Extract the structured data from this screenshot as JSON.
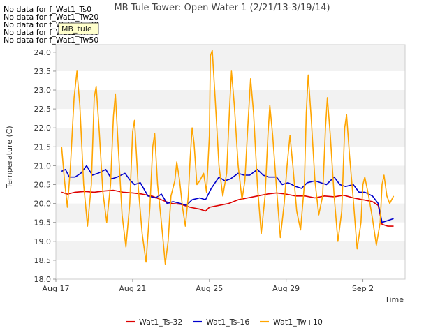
{
  "no_data_messages": [
    "No data for f_Wat1_Ts0",
    "No data for f_Wat1_Tw20",
    "No data for f_Wat1_Tw30",
    "No data for f_Wat1_Tw40",
    "No data for f_Wat1_Tw50"
  ],
  "chart_data": {
    "type": "line",
    "title": "MB Tule Tower: Open Water 1 (2/21/13-3/19/14)",
    "xlabel": "Time",
    "ylabel": "Temperature (C)",
    "ylim": [
      18.0,
      24.2
    ],
    "xlim_days": [
      17,
      35.2
    ],
    "x_tick_labels": [
      "Aug 17",
      "Aug 21",
      "Aug 25",
      "Aug 29",
      "Sep 2"
    ],
    "x_tick_days": [
      17,
      21,
      25,
      29,
      33
    ],
    "y_ticks": [
      18.0,
      18.5,
      19.0,
      19.5,
      20.0,
      20.5,
      21.0,
      21.5,
      22.0,
      22.5,
      23.0,
      23.5,
      24.0
    ],
    "grid": "alternating horizontal bands",
    "legend_position": "bottom",
    "badge": "MB_tule",
    "series": [
      {
        "name": "Wat1_Ts-32",
        "color": "#dd0000",
        "points": [
          [
            17.3,
            20.3
          ],
          [
            17.6,
            20.25
          ],
          [
            18.0,
            20.3
          ],
          [
            18.5,
            20.32
          ],
          [
            19.0,
            20.3
          ],
          [
            19.5,
            20.33
          ],
          [
            20.0,
            20.35
          ],
          [
            20.5,
            20.3
          ],
          [
            21.0,
            20.28
          ],
          [
            21.5,
            20.25
          ],
          [
            22.0,
            20.2
          ],
          [
            22.5,
            20.1
          ],
          [
            23.0,
            20.0
          ],
          [
            23.5,
            19.98
          ],
          [
            24.0,
            19.9
          ],
          [
            24.5,
            19.85
          ],
          [
            24.8,
            19.8
          ],
          [
            25.0,
            19.9
          ],
          [
            25.5,
            19.95
          ],
          [
            26.0,
            20.0
          ],
          [
            26.5,
            20.1
          ],
          [
            27.0,
            20.15
          ],
          [
            27.5,
            20.2
          ],
          [
            28.0,
            20.25
          ],
          [
            28.5,
            20.28
          ],
          [
            29.0,
            20.25
          ],
          [
            29.5,
            20.2
          ],
          [
            30.0,
            20.2
          ],
          [
            30.5,
            20.15
          ],
          [
            31.0,
            20.2
          ],
          [
            31.5,
            20.18
          ],
          [
            32.0,
            20.22
          ],
          [
            32.5,
            20.15
          ],
          [
            33.0,
            20.1
          ],
          [
            33.5,
            20.05
          ],
          [
            33.8,
            19.95
          ],
          [
            34.0,
            19.45
          ],
          [
            34.3,
            19.4
          ],
          [
            34.6,
            19.4
          ]
        ]
      },
      {
        "name": "Wat1_Ts-16",
        "color": "#0000cc",
        "points": [
          [
            17.3,
            20.85
          ],
          [
            17.5,
            20.9
          ],
          [
            17.7,
            20.7
          ],
          [
            18.0,
            20.7
          ],
          [
            18.3,
            20.8
          ],
          [
            18.6,
            21.0
          ],
          [
            18.9,
            20.75
          ],
          [
            19.2,
            20.8
          ],
          [
            19.6,
            20.9
          ],
          [
            19.9,
            20.65
          ],
          [
            20.2,
            20.7
          ],
          [
            20.6,
            20.8
          ],
          [
            20.9,
            20.6
          ],
          [
            21.1,
            20.5
          ],
          [
            21.4,
            20.55
          ],
          [
            21.8,
            20.2
          ],
          [
            22.2,
            20.15
          ],
          [
            22.5,
            20.25
          ],
          [
            22.8,
            20.0
          ],
          [
            23.1,
            20.05
          ],
          [
            23.5,
            20.0
          ],
          [
            23.8,
            19.95
          ],
          [
            24.1,
            20.1
          ],
          [
            24.5,
            20.15
          ],
          [
            24.8,
            20.1
          ],
          [
            25.1,
            20.4
          ],
          [
            25.5,
            20.7
          ],
          [
            25.8,
            20.6
          ],
          [
            26.1,
            20.65
          ],
          [
            26.5,
            20.8
          ],
          [
            26.8,
            20.75
          ],
          [
            27.1,
            20.75
          ],
          [
            27.5,
            20.9
          ],
          [
            27.8,
            20.75
          ],
          [
            28.1,
            20.7
          ],
          [
            28.5,
            20.7
          ],
          [
            28.8,
            20.5
          ],
          [
            29.1,
            20.55
          ],
          [
            29.5,
            20.45
          ],
          [
            29.8,
            20.4
          ],
          [
            30.1,
            20.55
          ],
          [
            30.5,
            20.6
          ],
          [
            30.8,
            20.55
          ],
          [
            31.1,
            20.5
          ],
          [
            31.5,
            20.7
          ],
          [
            31.8,
            20.5
          ],
          [
            32.1,
            20.45
          ],
          [
            32.5,
            20.5
          ],
          [
            32.8,
            20.3
          ],
          [
            33.1,
            20.3
          ],
          [
            33.5,
            20.2
          ],
          [
            33.8,
            20.0
          ],
          [
            34.0,
            19.5
          ],
          [
            34.3,
            19.55
          ],
          [
            34.6,
            19.6
          ]
        ]
      },
      {
        "name": "Wat1_Tw+10",
        "color": "#ffa500",
        "points": [
          [
            17.3,
            21.5
          ],
          [
            17.45,
            20.6
          ],
          [
            17.6,
            19.9
          ],
          [
            17.75,
            20.9
          ],
          [
            17.95,
            22.8
          ],
          [
            18.1,
            23.5
          ],
          [
            18.25,
            22.6
          ],
          [
            18.45,
            20.5
          ],
          [
            18.65,
            19.4
          ],
          [
            18.85,
            20.5
          ],
          [
            19.0,
            22.8
          ],
          [
            19.1,
            23.1
          ],
          [
            19.25,
            22.0
          ],
          [
            19.45,
            20.3
          ],
          [
            19.65,
            19.5
          ],
          [
            19.85,
            20.5
          ],
          [
            20.0,
            22.3
          ],
          [
            20.1,
            22.9
          ],
          [
            20.25,
            21.5
          ],
          [
            20.45,
            19.7
          ],
          [
            20.65,
            18.85
          ],
          [
            20.85,
            20.0
          ],
          [
            21.0,
            21.9
          ],
          [
            21.1,
            22.2
          ],
          [
            21.3,
            20.4
          ],
          [
            21.5,
            19.2
          ],
          [
            21.7,
            18.45
          ],
          [
            21.9,
            19.9
          ],
          [
            22.05,
            21.5
          ],
          [
            22.15,
            21.85
          ],
          [
            22.3,
            20.5
          ],
          [
            22.5,
            19.5
          ],
          [
            22.7,
            18.4
          ],
          [
            22.85,
            19.0
          ],
          [
            23.0,
            20.2
          ],
          [
            23.2,
            20.6
          ],
          [
            23.3,
            21.1
          ],
          [
            23.45,
            20.6
          ],
          [
            23.6,
            19.9
          ],
          [
            23.75,
            19.4
          ],
          [
            23.9,
            20.2
          ],
          [
            24.0,
            21.2
          ],
          [
            24.1,
            22.0
          ],
          [
            24.2,
            21.6
          ],
          [
            24.35,
            20.5
          ],
          [
            24.5,
            20.6
          ],
          [
            24.7,
            20.8
          ],
          [
            24.85,
            20.3
          ],
          [
            25.0,
            21.8
          ],
          [
            25.05,
            23.9
          ],
          [
            25.15,
            24.05
          ],
          [
            25.3,
            22.8
          ],
          [
            25.5,
            21.0
          ],
          [
            25.7,
            20.2
          ],
          [
            25.9,
            20.8
          ],
          [
            26.05,
            22.5
          ],
          [
            26.15,
            23.5
          ],
          [
            26.3,
            22.6
          ],
          [
            26.5,
            21.0
          ],
          [
            26.7,
            20.1
          ],
          [
            26.85,
            20.6
          ],
          [
            27.0,
            22.0
          ],
          [
            27.15,
            23.3
          ],
          [
            27.3,
            22.4
          ],
          [
            27.5,
            20.5
          ],
          [
            27.7,
            19.2
          ],
          [
            27.9,
            20.2
          ],
          [
            28.05,
            21.8
          ],
          [
            28.15,
            22.6
          ],
          [
            28.3,
            21.8
          ],
          [
            28.5,
            20.4
          ],
          [
            28.7,
            19.1
          ],
          [
            28.9,
            20.0
          ],
          [
            29.05,
            21.0
          ],
          [
            29.2,
            21.8
          ],
          [
            29.35,
            21.0
          ],
          [
            29.55,
            19.8
          ],
          [
            29.75,
            19.3
          ],
          [
            29.95,
            20.5
          ],
          [
            30.05,
            22.4
          ],
          [
            30.15,
            23.4
          ],
          [
            30.3,
            22.3
          ],
          [
            30.5,
            20.6
          ],
          [
            30.7,
            19.7
          ],
          [
            30.9,
            20.2
          ],
          [
            31.05,
            22.0
          ],
          [
            31.15,
            22.8
          ],
          [
            31.3,
            21.8
          ],
          [
            31.5,
            20.2
          ],
          [
            31.7,
            19.0
          ],
          [
            31.9,
            19.8
          ],
          [
            32.05,
            22.0
          ],
          [
            32.15,
            22.35
          ],
          [
            32.3,
            21.3
          ],
          [
            32.5,
            20.1
          ],
          [
            32.7,
            18.8
          ],
          [
            32.9,
            19.5
          ],
          [
            33.0,
            20.5
          ],
          [
            33.1,
            20.7
          ],
          [
            33.3,
            20.2
          ],
          [
            33.5,
            19.6
          ],
          [
            33.7,
            18.9
          ],
          [
            33.9,
            19.5
          ],
          [
            34.0,
            20.5
          ],
          [
            34.1,
            20.75
          ],
          [
            34.25,
            20.2
          ],
          [
            34.4,
            20.0
          ],
          [
            34.6,
            20.2
          ]
        ]
      }
    ]
  }
}
